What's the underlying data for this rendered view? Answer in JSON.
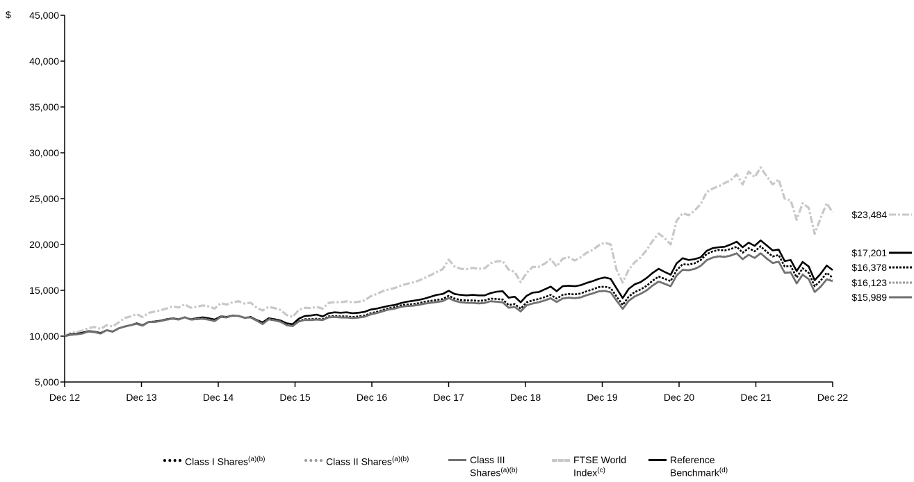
{
  "chart_data": {
    "type": "line",
    "y_currency_symbol": "$",
    "yticks": [
      5000,
      10000,
      15000,
      20000,
      25000,
      30000,
      35000,
      40000,
      45000
    ],
    "ytick_labels": [
      "5,000",
      "10,000",
      "15,000",
      "20,000",
      "25,000",
      "30,000",
      "35,000",
      "40,000",
      "45,000"
    ],
    "ylim": [
      5000,
      45000
    ],
    "xticks": [
      "Dec 12",
      "Dec 13",
      "Dec 14",
      "Dec 15",
      "Dec 16",
      "Dec 17",
      "Dec 18",
      "Dec 19",
      "Dec 20",
      "Dec 21",
      "Dec 22"
    ],
    "x_start_year": 2012,
    "series": [
      {
        "name": "FTSE World Index",
        "superscript": "(c)",
        "end_label": "$23,484",
        "color": "#c8c8c8",
        "style": "dashdot",
        "values": [
          10000,
          10380,
          10420,
          10610,
          10890,
          11000,
          10780,
          11200,
          11050,
          11500,
          11980,
          12150,
          12400,
          12080,
          12530,
          12680,
          12820,
          13020,
          13260,
          13120,
          13470,
          13100,
          13200,
          13350,
          13240,
          13000,
          13600,
          13450,
          13700,
          13800,
          13550,
          13650,
          13100,
          12800,
          13200,
          13050,
          12850,
          12300,
          12100,
          12850,
          13100,
          13050,
          13180,
          13000,
          13620,
          13720,
          13700,
          13800,
          13680,
          13750,
          13900,
          14350,
          14600,
          14900,
          15100,
          15250,
          15500,
          15700,
          15850,
          16050,
          16350,
          16650,
          17000,
          17300,
          18350,
          17600,
          17350,
          17300,
          17450,
          17350,
          17400,
          17950,
          18150,
          18200,
          17250,
          17000,
          15900,
          16900,
          17550,
          17550,
          17900,
          18400,
          17600,
          18450,
          18600,
          18250,
          18600,
          19100,
          19400,
          19900,
          20200,
          20000,
          17200,
          15850,
          17250,
          18050,
          18600,
          19400,
          20400,
          21200,
          20700,
          20000,
          22600,
          23400,
          23200,
          23700,
          24400,
          25700,
          26100,
          26350,
          26700,
          27000,
          27650,
          26550,
          27950,
          27350,
          28400,
          27450,
          26550,
          27100,
          25000,
          24800,
          22700,
          24500,
          24000,
          21150,
          22900,
          24500,
          23484
        ]
      },
      {
        "name": "Reference Benchmark",
        "superscript": "(d)",
        "end_label": "$17,201",
        "color": "#000000",
        "style": "solid",
        "values": [
          10000,
          10200,
          10250,
          10380,
          10550,
          10480,
          10350,
          10650,
          10500,
          10850,
          11050,
          11200,
          11400,
          11200,
          11550,
          11600,
          11700,
          11850,
          11950,
          11850,
          12050,
          11850,
          11950,
          12050,
          11950,
          11800,
          12150,
          12100,
          12250,
          12200,
          12000,
          12100,
          11750,
          11500,
          11950,
          11850,
          11700,
          11400,
          11300,
          11900,
          12200,
          12250,
          12350,
          12150,
          12500,
          12600,
          12550,
          12600,
          12500,
          12550,
          12650,
          12900,
          13000,
          13150,
          13300,
          13400,
          13600,
          13750,
          13850,
          13950,
          14100,
          14300,
          14500,
          14600,
          14950,
          14600,
          14500,
          14450,
          14500,
          14450,
          14450,
          14700,
          14850,
          14900,
          14200,
          14300,
          13700,
          14400,
          14750,
          14800,
          15100,
          15400,
          14900,
          15450,
          15500,
          15450,
          15550,
          15800,
          16000,
          16250,
          16400,
          16250,
          15200,
          14150,
          15150,
          15650,
          15900,
          16350,
          16900,
          17350,
          17000,
          16700,
          17950,
          18500,
          18300,
          18400,
          18600,
          19300,
          19600,
          19700,
          19750,
          20000,
          20300,
          19700,
          20200,
          19850,
          20450,
          19900,
          19350,
          19450,
          18200,
          18300,
          17100,
          18100,
          17600,
          16100,
          16800,
          17700,
          17201
        ]
      },
      {
        "name": "Class I Shares",
        "superscript": "(a)(b)",
        "end_label": "$16,378",
        "color": "#000000",
        "style": "dotted",
        "values": [
          10000,
          10150,
          10200,
          10300,
          10500,
          10450,
          10300,
          10650,
          10500,
          10850,
          11050,
          11200,
          11350,
          11150,
          11550,
          11550,
          11650,
          11800,
          11900,
          11800,
          12050,
          11800,
          11850,
          11900,
          11800,
          11650,
          12100,
          12050,
          12250,
          12200,
          12000,
          12050,
          11700,
          11350,
          11850,
          11750,
          11600,
          11250,
          11150,
          11650,
          11850,
          11850,
          11900,
          11850,
          12150,
          12200,
          12150,
          12150,
          12100,
          12150,
          12250,
          12500,
          12650,
          12850,
          13050,
          13150,
          13350,
          13450,
          13500,
          13600,
          13750,
          13850,
          13950,
          14050,
          14400,
          14100,
          13950,
          13900,
          13900,
          13850,
          13900,
          14100,
          14050,
          14000,
          13400,
          13500,
          13000,
          13700,
          13900,
          14050,
          14250,
          14500,
          14100,
          14500,
          14600,
          14550,
          14650,
          14900,
          15100,
          15350,
          15400,
          15250,
          14300,
          13400,
          14300,
          14800,
          15100,
          15500,
          16050,
          16500,
          16250,
          16000,
          17200,
          17850,
          17800,
          17950,
          18300,
          18950,
          19250,
          19400,
          19350,
          19500,
          19750,
          19100,
          19600,
          19250,
          19800,
          19200,
          18700,
          18850,
          17600,
          17650,
          16400,
          17400,
          16900,
          15450,
          16050,
          16900,
          16378
        ]
      },
      {
        "name": "Class II Shares",
        "superscript": "(a)(b)",
        "end_label": "$16,123",
        "color": "#9a9a9a",
        "style": "dotted",
        "values": [
          10000,
          10150,
          10200,
          10300,
          10520,
          10450,
          10300,
          10660,
          10500,
          10860,
          11060,
          11220,
          11360,
          11160,
          11570,
          11560,
          11660,
          11810,
          11930,
          11830,
          12080,
          11830,
          11880,
          11920,
          11820,
          11670,
          12120,
          12060,
          12280,
          12230,
          12030,
          12070,
          11710,
          11340,
          11860,
          11750,
          11590,
          11230,
          11120,
          11620,
          11800,
          11790,
          11840,
          11790,
          12080,
          12120,
          12070,
          12060,
          12010,
          12060,
          12150,
          12400,
          12550,
          12740,
          12940,
          13030,
          13220,
          13310,
          13350,
          13440,
          13580,
          13670,
          13760,
          13850,
          14190,
          13890,
          13730,
          13670,
          13660,
          13610,
          13650,
          13840,
          13780,
          13720,
          13130,
          13220,
          12730,
          13400,
          13590,
          13730,
          13920,
          14160,
          13760,
          14140,
          14230,
          14170,
          14260,
          14500,
          14690,
          14920,
          14970,
          14810,
          13890,
          13010,
          13880,
          14360,
          14650,
          15030,
          15560,
          15990,
          15740,
          15490,
          16650,
          17270,
          17220,
          17360,
          17690,
          18320,
          18600,
          18740,
          18680,
          18820,
          19060,
          18430,
          18900,
          18560,
          19080,
          18500,
          18010,
          18150,
          16950,
          16990,
          15780,
          16740,
          16250,
          14850,
          15420,
          16230,
          16123
        ]
      },
      {
        "name": "Class III Shares",
        "superscript": "(a)(b)",
        "end_label": "$15,989",
        "color": "#707070",
        "style": "solid",
        "values": [
          10000,
          10140,
          10190,
          10290,
          10500,
          10430,
          10280,
          10640,
          10480,
          10840,
          11040,
          11200,
          11340,
          11140,
          11550,
          11540,
          11640,
          11790,
          11900,
          11800,
          12050,
          11800,
          11850,
          11890,
          11790,
          11640,
          12090,
          12030,
          12250,
          12200,
          12000,
          12040,
          11680,
          11310,
          11820,
          11710,
          11550,
          11190,
          11080,
          11580,
          11760,
          11750,
          11800,
          11750,
          12040,
          12080,
          12030,
          12020,
          11970,
          12020,
          12110,
          12360,
          12510,
          12700,
          12900,
          12990,
          13180,
          13270,
          13310,
          13400,
          13540,
          13630,
          13720,
          13810,
          14150,
          13850,
          13690,
          13630,
          13620,
          13570,
          13610,
          13800,
          13740,
          13680,
          13090,
          13180,
          12690,
          13360,
          13550,
          13690,
          13880,
          14120,
          13720,
          14100,
          14190,
          14130,
          14220,
          14460,
          14650,
          14880,
          14930,
          14770,
          13850,
          12970,
          13840,
          14320,
          14610,
          14990,
          15520,
          15950,
          15700,
          15450,
          16610,
          17230,
          17180,
          17320,
          17650,
          18280,
          18560,
          18700,
          18640,
          18780,
          19020,
          18390,
          18860,
          18520,
          19040,
          18460,
          17970,
          18110,
          16910,
          16950,
          15740,
          16700,
          16210,
          14810,
          15380,
          16190,
          15989
        ]
      }
    ],
    "legend_order": [
      "Class I Shares",
      "Class II Shares",
      "Class III Shares",
      "FTSE World Index",
      "Reference Benchmark"
    ],
    "legend_placement": "bottom",
    "grid": false
  },
  "legend": [
    {
      "label": "Class I Shares",
      "sup": "(a)(b)"
    },
    {
      "label": "Class II Shares",
      "sup": "(a)(b)"
    },
    {
      "label": "Class III Shares",
      "sup": "(a)(b)"
    },
    {
      "label": "FTSE World Index",
      "sup": "(c)"
    },
    {
      "label": "Reference Benchmark",
      "sup": "(d)"
    }
  ]
}
